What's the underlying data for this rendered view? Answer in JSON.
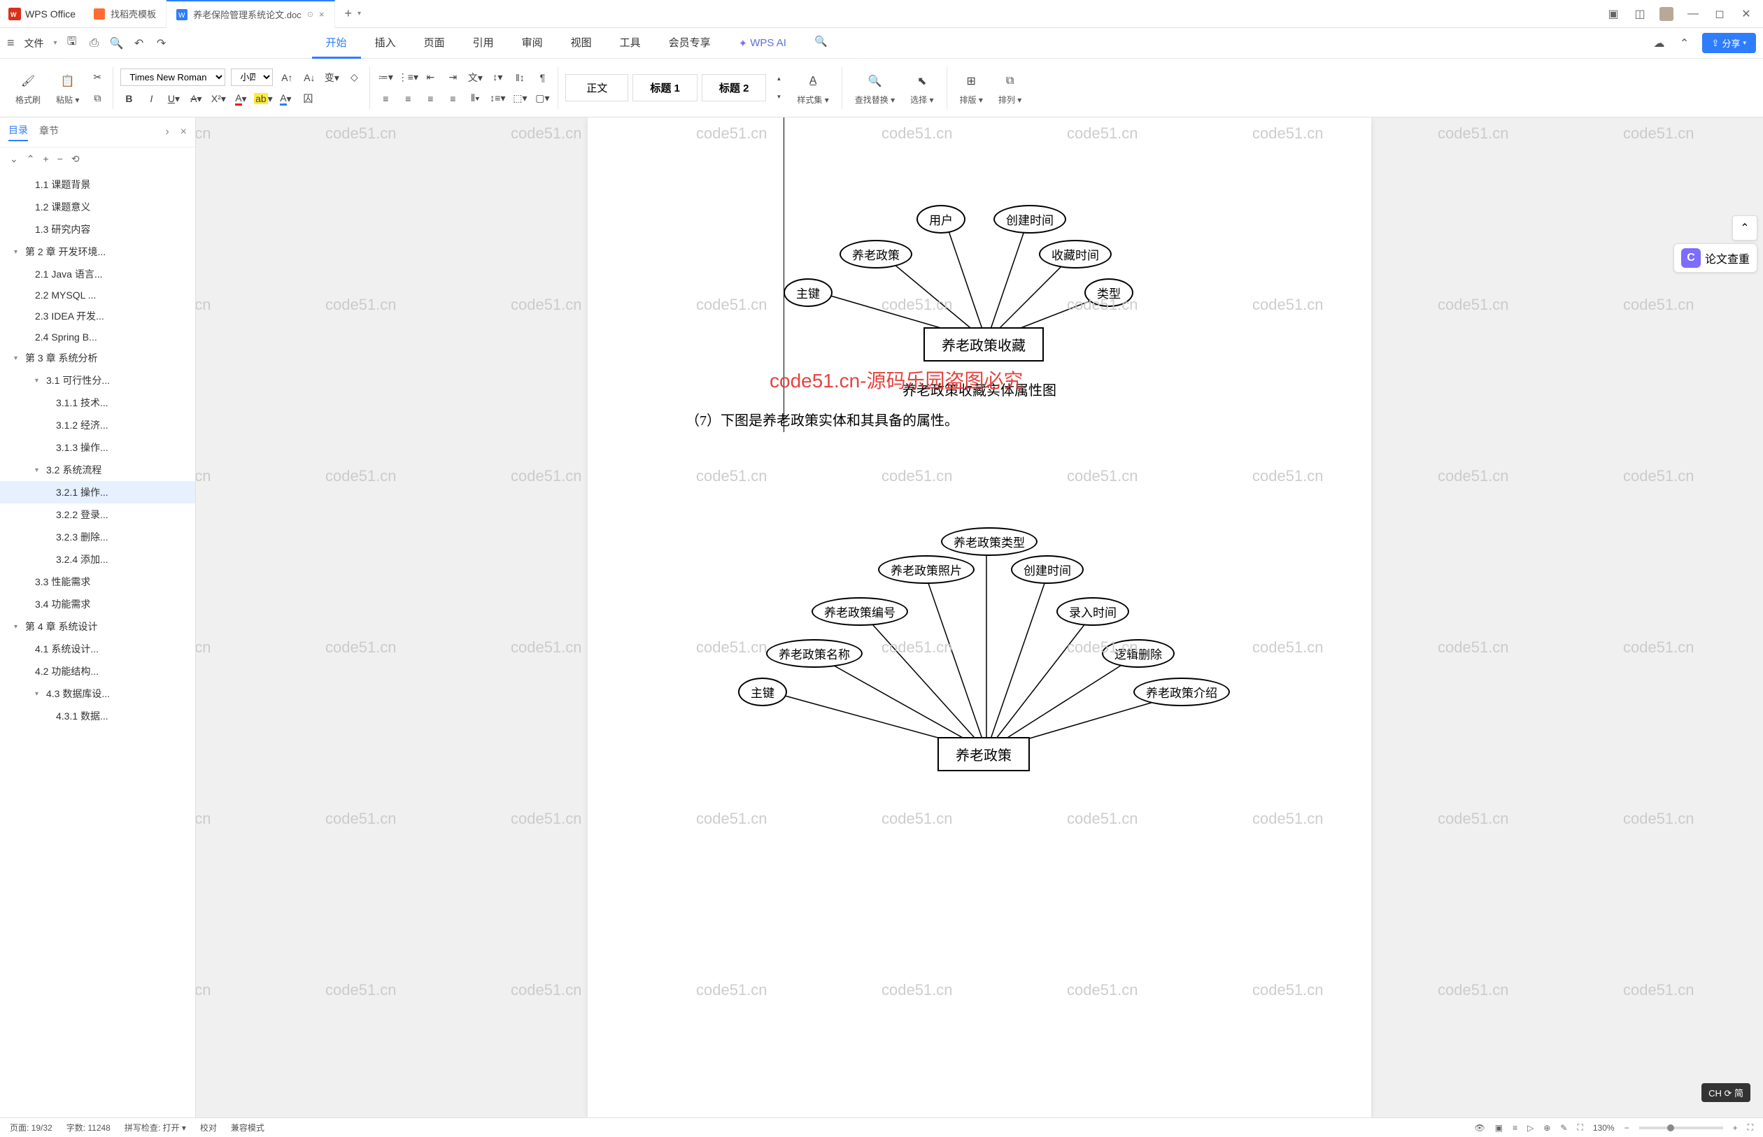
{
  "app": {
    "name": "WPS Office",
    "template_tab": "找稻壳模板",
    "doc_tab": "养老保险管理系统论文.doc"
  },
  "menu": {
    "file": "文件",
    "tabs": [
      "开始",
      "插入",
      "页面",
      "引用",
      "审阅",
      "视图",
      "工具",
      "会员专享"
    ],
    "ai": "WPS AI",
    "share": "分享"
  },
  "ribbon": {
    "format_painter": "格式刷",
    "paste": "粘贴",
    "font": "Times New Roman",
    "size": "小四",
    "styles": [
      "正文",
      "标题 1",
      "标题 2"
    ],
    "style_set": "样式集",
    "find_replace": "查找替换",
    "select": "选择",
    "sort": "排版",
    "arrange": "排列"
  },
  "sidebar": {
    "tabs": [
      "目录",
      "章节"
    ],
    "items": [
      {
        "level": 2,
        "text": "1.1 课题背景"
      },
      {
        "level": 2,
        "text": "1.2 课题意义"
      },
      {
        "level": 2,
        "text": "1.3 研究内容"
      },
      {
        "level": 1,
        "text": "第 2 章 开发环境...",
        "expandable": true
      },
      {
        "level": 2,
        "text": "2.1 Java 语言..."
      },
      {
        "level": 2,
        "text": "2.2 MYSQL ..."
      },
      {
        "level": 2,
        "text": "2.3 IDEA 开发..."
      },
      {
        "level": 2,
        "text": "2.4 Spring B..."
      },
      {
        "level": 1,
        "text": "第 3 章 系统分析",
        "expandable": true
      },
      {
        "level": 2,
        "text": "3.1 可行性分...",
        "expandable": true
      },
      {
        "level": 3,
        "text": "3.1.1 技术..."
      },
      {
        "level": 3,
        "text": "3.1.2 经济..."
      },
      {
        "level": 3,
        "text": "3.1.3 操作..."
      },
      {
        "level": 2,
        "text": "3.2 系统流程",
        "expandable": true
      },
      {
        "level": 3,
        "text": "3.2.1 操作...",
        "selected": true
      },
      {
        "level": 3,
        "text": "3.2.2 登录..."
      },
      {
        "level": 3,
        "text": "3.2.3 删除..."
      },
      {
        "level": 3,
        "text": "3.2.4 添加..."
      },
      {
        "level": 2,
        "text": "3.3 性能需求"
      },
      {
        "level": 2,
        "text": "3.4 功能需求"
      },
      {
        "level": 1,
        "text": "第 4 章 系统设计",
        "expandable": true
      },
      {
        "level": 2,
        "text": "4.1 系统设计..."
      },
      {
        "level": 2,
        "text": "4.2 功能结构..."
      },
      {
        "level": 2,
        "text": "4.3 数据库设...",
        "expandable": true
      },
      {
        "level": 3,
        "text": "4.3.1 数据..."
      }
    ]
  },
  "document": {
    "watermark_text": "code51.cn",
    "red_overlay": "code51.cn-源码乐园盗图必究",
    "diagram1": {
      "entity": "养老政策收藏",
      "attributes": [
        "主键",
        "养老政策",
        "用户",
        "创建时间",
        "收藏时间",
        "类型"
      ],
      "caption": "养老政策收藏实体属性图"
    },
    "body_line": "（7）下图是养老政策实体和其具备的属性。",
    "diagram2": {
      "entity": "养老政策",
      "attributes": [
        "主键",
        "养老政策名称",
        "养老政策编号",
        "养老政策照片",
        "养老政策类型",
        "创建时间",
        "录入时间",
        "逻辑删除",
        "养老政策介绍"
      ]
    }
  },
  "right_rail": {
    "paper_check": "论文查重"
  },
  "statusbar": {
    "page": "页面: 19/32",
    "words": "字数: 11248",
    "spell": "拼写检查: 打开",
    "proof": "校对",
    "compat": "兼容模式",
    "zoom": "130%"
  },
  "ime": "CH ⟳ 简"
}
